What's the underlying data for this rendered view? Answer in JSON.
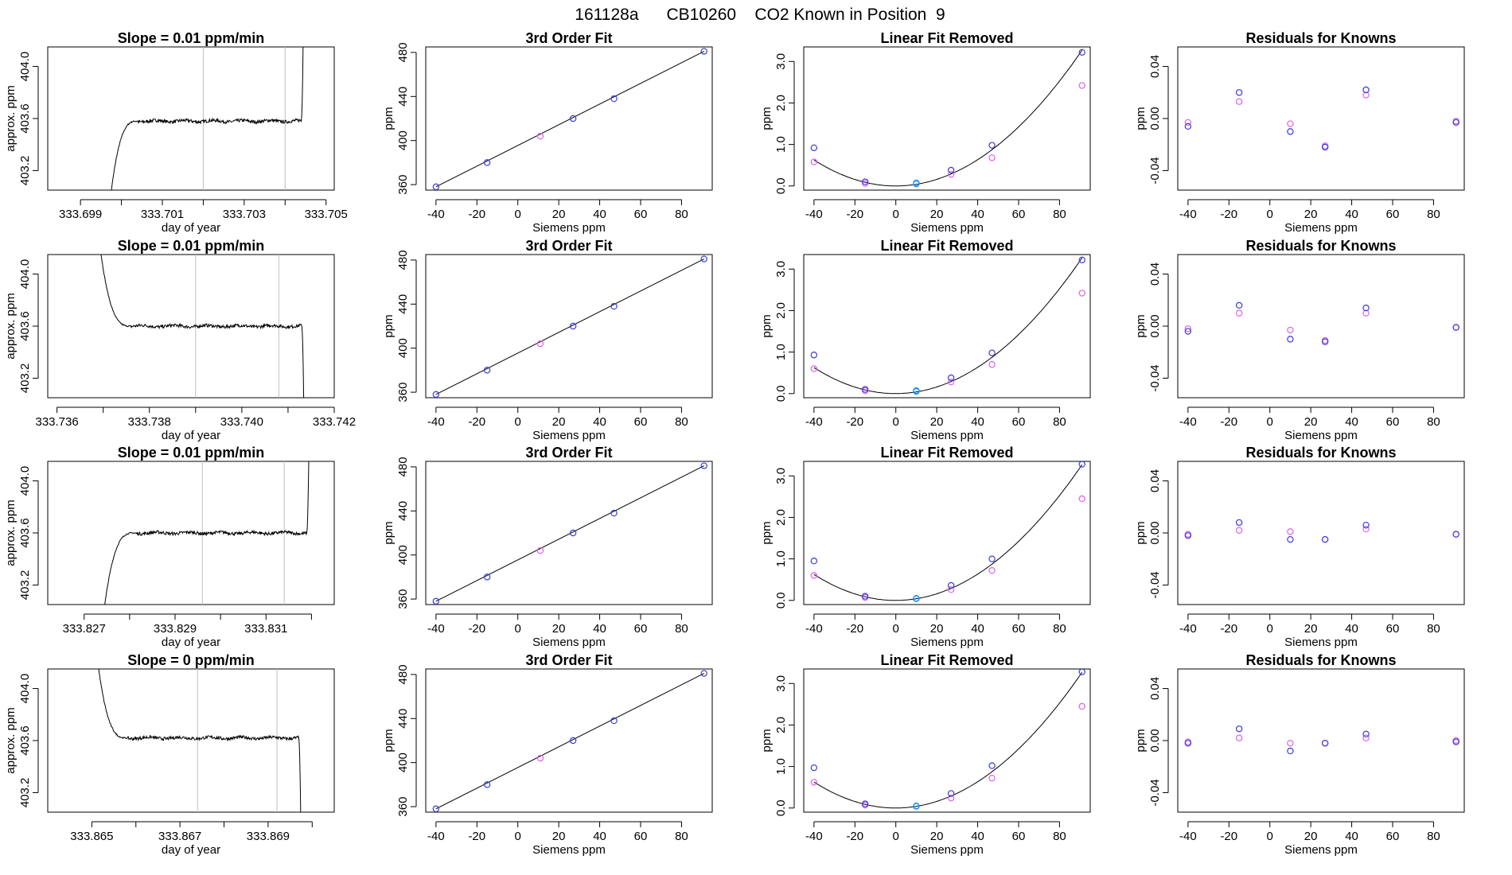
{
  "title": "161128a      CB10260    CO2 Known in Position  9",
  "colors": {
    "known": "#3a3adf",
    "siemens": "#e060e8",
    "zero": "#1e90ff",
    "trace": "#000000",
    "grid_line": "#bfbfbf"
  },
  "chart_data": [
    {
      "row": 0,
      "col": 0,
      "type": "line",
      "title": "Slope =  0.01  ppm/min",
      "xlabel": "day of year",
      "ylabel": "approx. ppm",
      "xlim": [
        333.6982,
        333.7052
      ],
      "ylim": [
        403.05,
        404.15
      ],
      "xticks": [
        333.699,
        333.7,
        333.701,
        333.702,
        333.703,
        333.704,
        333.705
      ],
      "xtick_labels": [
        "333.699",
        "",
        "333.701",
        "",
        "333.703",
        "",
        "333.705"
      ],
      "yticks": [
        403.2,
        403.6,
        404.0
      ],
      "ytick_labels": [
        "403.2",
        "403.6",
        "404.0"
      ],
      "vlines": [
        333.702,
        333.704
      ],
      "trace": {
        "kind": "rise",
        "start": 333.6997,
        "knee": 333.7004,
        "level": 403.58,
        "end": 333.70445,
        "shape": 0.58
      }
    },
    {
      "row": 0,
      "col": 1,
      "type": "scatter",
      "title": "3rd Order Fit",
      "xlabel": "Siemens ppm",
      "ylabel": "ppm",
      "xlim": [
        -45,
        95
      ],
      "ylim": [
        355,
        485
      ],
      "xticks": [
        -40,
        -20,
        0,
        20,
        40,
        60,
        80
      ],
      "yticks": [
        360,
        400,
        440,
        480
      ],
      "x": [
        -40,
        -15,
        11,
        27,
        47,
        91
      ],
      "y": [
        358,
        380,
        404,
        420,
        438,
        481
      ],
      "zero_index": 2,
      "fit_line": [
        [
          -40,
          358
        ],
        [
          91,
          481
        ]
      ]
    },
    {
      "row": 0,
      "col": 2,
      "type": "scatter",
      "title": "Linear Fit Removed",
      "xlabel": "Siemens ppm",
      "ylabel": "ppm",
      "xlim": [
        -45,
        95
      ],
      "ylim": [
        -0.1,
        3.35
      ],
      "xticks": [
        -40,
        -20,
        0,
        20,
        40,
        60,
        80
      ],
      "yticks": [
        0.0,
        1.0,
        2.0,
        3.0
      ],
      "ytick_labels": [
        "0.0",
        "1.0",
        "2.0",
        "3.0"
      ],
      "x": [
        -40,
        -15,
        10,
        27,
        47,
        91
      ],
      "known": [
        0.92,
        0.1,
        0.07,
        0.38,
        0.98,
        3.22
      ],
      "siemens": [
        0.58,
        0.06,
        0.05,
        0.28,
        0.68,
        2.42
      ],
      "curve_a": 0.000394,
      "curve_b": 7.7e-05,
      "zero_index": 2
    },
    {
      "row": 0,
      "col": 3,
      "type": "scatter",
      "title": "Residuals for Knowns",
      "xlabel": "Siemens ppm",
      "ylabel": "ppm",
      "xlim": [
        -45,
        95
      ],
      "ylim": [
        -0.055,
        0.055
      ],
      "xticks": [
        -40,
        -20,
        0,
        20,
        40,
        60,
        80
      ],
      "yticks": [
        -0.04,
        0.0,
        0.04
      ],
      "ytick_labels": [
        "-0.04",
        "0.00",
        "0.04"
      ],
      "x": [
        -40,
        -15,
        10,
        27,
        47,
        91
      ],
      "known": [
        -0.006,
        0.02,
        -0.01,
        -0.022,
        0.022,
        -0.003
      ],
      "siemens": [
        -0.003,
        0.013,
        -0.004,
        -0.021,
        0.018,
        -0.002
      ]
    },
    {
      "row": 1,
      "col": 0,
      "type": "line",
      "title": "Slope =  0.01  ppm/min",
      "xlabel": "day of year",
      "ylabel": "approx. ppm",
      "xlim": [
        333.7358,
        333.742
      ],
      "ylim": [
        403.05,
        404.15
      ],
      "xticks": [
        333.736,
        333.737,
        333.738,
        333.739,
        333.74,
        333.741,
        333.742
      ],
      "xtick_labels": [
        "333.736",
        "",
        "333.738",
        "",
        "333.740",
        "",
        "333.742"
      ],
      "yticks": [
        403.2,
        403.6,
        404.0
      ],
      "ytick_labels": [
        "403.2",
        "403.6",
        "404.0"
      ],
      "vlines": [
        333.739,
        333.7408
      ],
      "trace": {
        "kind": "fall",
        "start": 333.7369,
        "knee": 333.7376,
        "level": 403.6,
        "end": 333.74135,
        "shape": 0.58
      }
    },
    {
      "row": 1,
      "col": 1,
      "type": "scatter",
      "title": "3rd Order Fit",
      "xlabel": "Siemens ppm",
      "ylabel": "ppm",
      "xlim": [
        -45,
        95
      ],
      "ylim": [
        355,
        485
      ],
      "xticks": [
        -40,
        -20,
        0,
        20,
        40,
        60,
        80
      ],
      "yticks": [
        360,
        400,
        440,
        480
      ],
      "x": [
        -40,
        -15,
        11,
        27,
        47,
        91
      ],
      "y": [
        358,
        380,
        404,
        420,
        438,
        481
      ],
      "zero_index": 2,
      "fit_line": [
        [
          -40,
          358
        ],
        [
          91,
          481
        ]
      ]
    },
    {
      "row": 1,
      "col": 2,
      "type": "scatter",
      "title": "Linear Fit Removed",
      "xlabel": "Siemens ppm",
      "ylabel": "ppm",
      "xlim": [
        -45,
        95
      ],
      "ylim": [
        -0.1,
        3.35
      ],
      "xticks": [
        -40,
        -20,
        0,
        20,
        40,
        60,
        80
      ],
      "yticks": [
        0.0,
        1.0,
        2.0,
        3.0
      ],
      "ytick_labels": [
        "0.0",
        "1.0",
        "2.0",
        "3.0"
      ],
      "x": [
        -40,
        -15,
        10,
        27,
        47,
        91
      ],
      "known": [
        0.93,
        0.1,
        0.07,
        0.38,
        0.98,
        3.22
      ],
      "siemens": [
        0.6,
        0.07,
        0.05,
        0.28,
        0.7,
        2.42
      ],
      "curve_a": 0.000394,
      "curve_b": 7.7e-05,
      "zero_index": 2
    },
    {
      "row": 1,
      "col": 3,
      "type": "scatter",
      "title": "Residuals for Knowns",
      "xlabel": "Siemens ppm",
      "ylabel": "ppm",
      "xlim": [
        -45,
        95
      ],
      "ylim": [
        -0.055,
        0.055
      ],
      "xticks": [
        -40,
        -20,
        0,
        20,
        40,
        60,
        80
      ],
      "yticks": [
        -0.04,
        0.0,
        0.04
      ],
      "ytick_labels": [
        "-0.04",
        "0.00",
        "0.04"
      ],
      "x": [
        -40,
        -15,
        10,
        27,
        47,
        91
      ],
      "known": [
        -0.004,
        0.016,
        -0.01,
        -0.012,
        0.014,
        -0.001
      ],
      "siemens": [
        -0.002,
        0.01,
        -0.003,
        -0.011,
        0.01,
        -0.001
      ]
    },
    {
      "row": 2,
      "col": 0,
      "type": "line",
      "title": "Slope =  0.01  ppm/min",
      "xlabel": "day of year",
      "ylabel": "approx. ppm",
      "xlim": [
        333.8262,
        333.8325
      ],
      "ylim": [
        403.05,
        404.15
      ],
      "xticks": [
        333.827,
        333.828,
        333.829,
        333.83,
        333.831,
        333.832
      ],
      "xtick_labels": [
        "333.827",
        "",
        "333.829",
        "",
        "333.831",
        ""
      ],
      "yticks": [
        403.2,
        403.6,
        404.0
      ],
      "ytick_labels": [
        "403.2",
        "403.6",
        "404.0"
      ],
      "vlines": [
        333.8296,
        333.8314
      ],
      "trace": {
        "kind": "rise",
        "start": 333.8274,
        "knee": 333.8281,
        "level": 403.6,
        "end": 333.83195,
        "shape": 0.58
      }
    },
    {
      "row": 2,
      "col": 1,
      "type": "scatter",
      "title": "3rd Order Fit",
      "xlabel": "Siemens ppm",
      "ylabel": "ppm",
      "xlim": [
        -45,
        95
      ],
      "ylim": [
        355,
        485
      ],
      "xticks": [
        -40,
        -20,
        0,
        20,
        40,
        60,
        80
      ],
      "yticks": [
        360,
        400,
        440,
        480
      ],
      "x": [
        -40,
        -15,
        11,
        27,
        47,
        91
      ],
      "y": [
        358,
        380,
        404,
        420,
        438,
        481
      ],
      "zero_index": 2,
      "fit_line": [
        [
          -40,
          358
        ],
        [
          91,
          481
        ]
      ]
    },
    {
      "row": 2,
      "col": 2,
      "type": "scatter",
      "title": "Linear Fit Removed",
      "xlabel": "Siemens ppm",
      "ylabel": "ppm",
      "xlim": [
        -45,
        95
      ],
      "ylim": [
        -0.1,
        3.35
      ],
      "xticks": [
        -40,
        -20,
        0,
        20,
        40,
        60,
        80
      ],
      "yticks": [
        0.0,
        1.0,
        2.0,
        3.0
      ],
      "ytick_labels": [
        "0.0",
        "1.0",
        "2.0",
        "3.0"
      ],
      "x": [
        -40,
        -15,
        10,
        27,
        47,
        91
      ],
      "known": [
        0.95,
        0.1,
        0.05,
        0.36,
        1.0,
        3.28
      ],
      "siemens": [
        0.6,
        0.07,
        0.04,
        0.26,
        0.72,
        2.45
      ],
      "curve_a": 0.000394,
      "curve_b": 7.7e-05,
      "zero_index": 2
    },
    {
      "row": 2,
      "col": 3,
      "type": "scatter",
      "title": "Residuals for Knowns",
      "xlabel": "Siemens ppm",
      "ylabel": "ppm",
      "xlim": [
        -45,
        95
      ],
      "ylim": [
        -0.055,
        0.055
      ],
      "xticks": [
        -40,
        -20,
        0,
        20,
        40,
        60,
        80
      ],
      "yticks": [
        -0.04,
        0.0,
        0.04
      ],
      "ytick_labels": [
        "-0.04",
        "0.00",
        "0.04"
      ],
      "x": [
        -40,
        -15,
        10,
        27,
        47,
        91
      ],
      "known": [
        -0.002,
        0.008,
        -0.005,
        -0.005,
        0.006,
        -0.001
      ],
      "siemens": [
        -0.001,
        0.002,
        0.001,
        -0.005,
        0.003,
        -0.001
      ]
    },
    {
      "row": 3,
      "col": 0,
      "type": "line",
      "title": "Slope =  0  ppm/min",
      "xlabel": "day of year",
      "ylabel": "approx. ppm",
      "xlim": [
        333.864,
        333.8705
      ],
      "ylim": [
        403.05,
        404.15
      ],
      "xticks": [
        333.865,
        333.866,
        333.867,
        333.868,
        333.869,
        333.87
      ],
      "xtick_labels": [
        "333.865",
        "",
        "333.867",
        "",
        "333.869",
        ""
      ],
      "yticks": [
        403.2,
        403.6,
        404.0
      ],
      "ytick_labels": [
        "403.2",
        "403.6",
        "404.0"
      ],
      "vlines": [
        333.8674,
        333.8692
      ],
      "trace": {
        "kind": "fall",
        "start": 333.8651,
        "knee": 333.8658,
        "level": 403.62,
        "end": 333.86975,
        "shape": 0.58
      }
    },
    {
      "row": 3,
      "col": 1,
      "type": "scatter",
      "title": "3rd Order Fit",
      "xlabel": "Siemens ppm",
      "ylabel": "ppm",
      "xlim": [
        -45,
        95
      ],
      "ylim": [
        355,
        485
      ],
      "xticks": [
        -40,
        -20,
        0,
        20,
        40,
        60,
        80
      ],
      "yticks": [
        360,
        400,
        440,
        480
      ],
      "x": [
        -40,
        -15,
        11,
        27,
        47,
        91
      ],
      "y": [
        358,
        380,
        404,
        420,
        438,
        481
      ],
      "zero_index": 2,
      "fit_line": [
        [
          -40,
          358
        ],
        [
          91,
          481
        ]
      ]
    },
    {
      "row": 3,
      "col": 2,
      "type": "scatter",
      "title": "Linear Fit Removed",
      "xlabel": "Siemens ppm",
      "ylabel": "ppm",
      "xlim": [
        -45,
        95
      ],
      "ylim": [
        -0.1,
        3.35
      ],
      "xticks": [
        -40,
        -20,
        0,
        20,
        40,
        60,
        80
      ],
      "yticks": [
        0.0,
        1.0,
        2.0,
        3.0
      ],
      "ytick_labels": [
        "0.0",
        "1.0",
        "2.0",
        "3.0"
      ],
      "x": [
        -40,
        -15,
        10,
        27,
        47,
        91
      ],
      "known": [
        0.97,
        0.1,
        0.05,
        0.35,
        1.02,
        3.28
      ],
      "siemens": [
        0.62,
        0.07,
        0.04,
        0.24,
        0.72,
        2.45
      ],
      "curve_a": 0.000394,
      "curve_b": 7.7e-05,
      "zero_index": 2
    },
    {
      "row": 3,
      "col": 3,
      "type": "scatter",
      "title": "Residuals for Knowns",
      "xlabel": "Siemens ppm",
      "ylabel": "ppm",
      "xlim": [
        -45,
        95
      ],
      "ylim": [
        -0.055,
        0.055
      ],
      "xticks": [
        -40,
        -20,
        0,
        20,
        40,
        60,
        80
      ],
      "yticks": [
        -0.04,
        0.0,
        0.04
      ],
      "ytick_labels": [
        "-0.04",
        "0.00",
        "0.04"
      ],
      "x": [
        -40,
        -15,
        10,
        27,
        47,
        91
      ],
      "known": [
        -0.002,
        0.009,
        -0.008,
        -0.002,
        0.005,
        -0.001
      ],
      "siemens": [
        -0.001,
        0.002,
        -0.002,
        -0.002,
        0.002,
        0.0
      ]
    }
  ]
}
